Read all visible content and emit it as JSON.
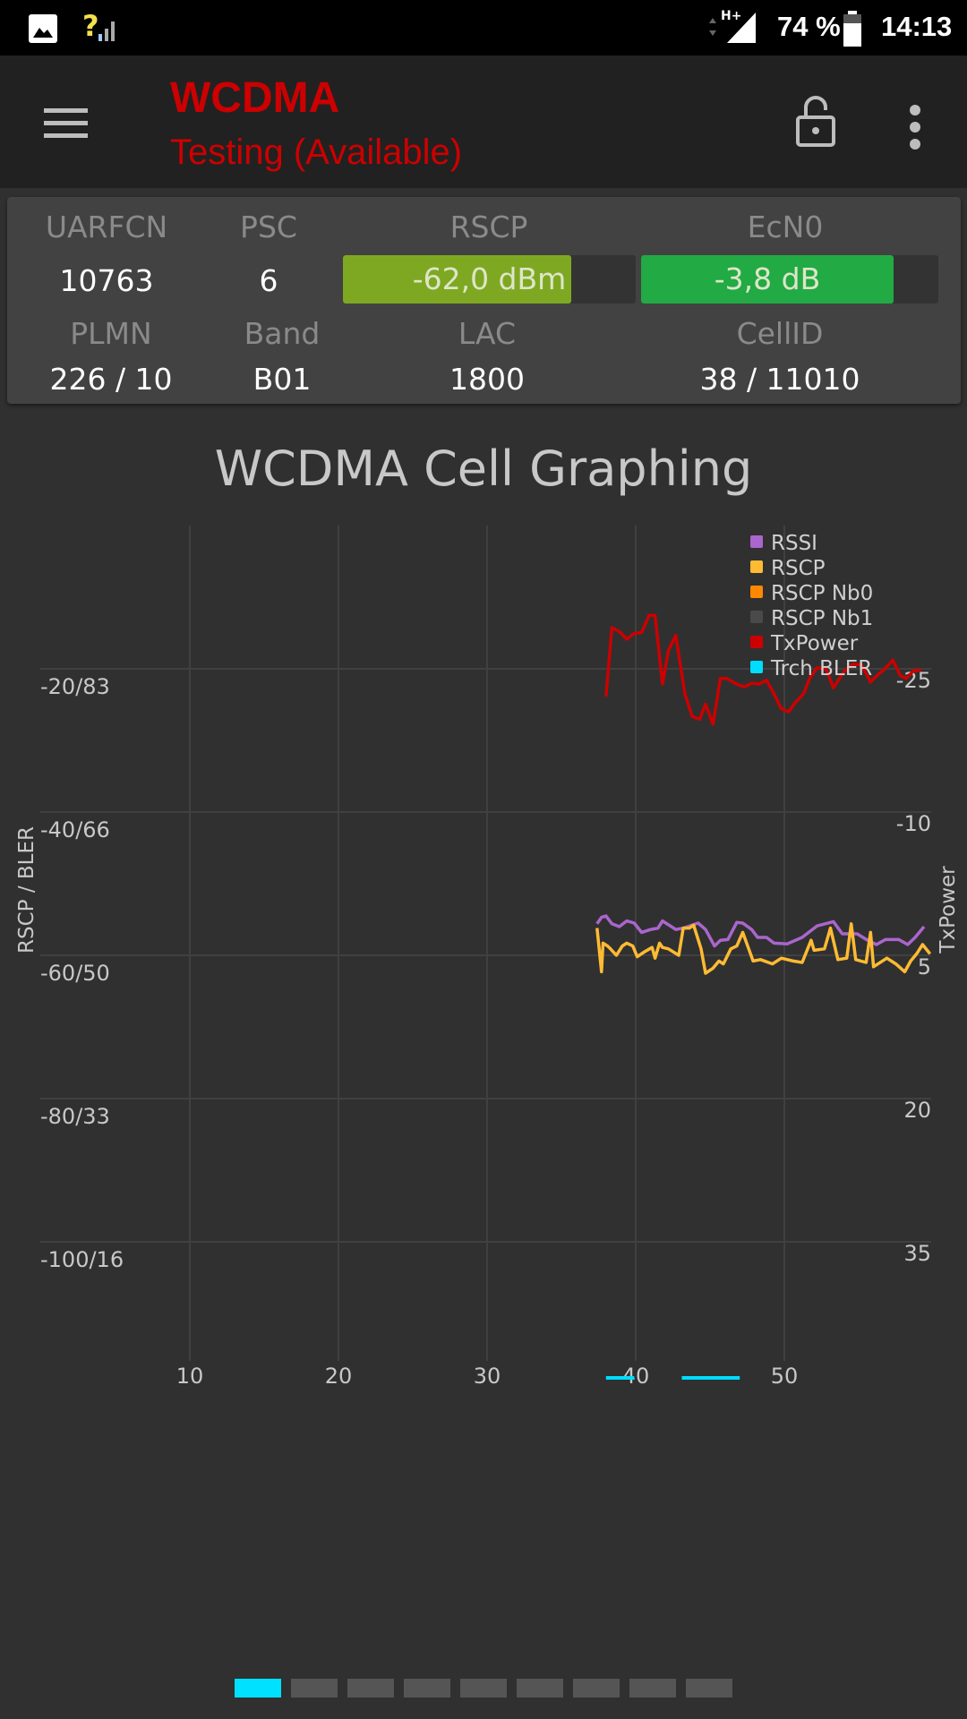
{
  "status_bar": {
    "network_type": "H+",
    "battery": "74 %",
    "time": "14:13",
    "signal_label": "?"
  },
  "app_bar": {
    "title": "WCDMA",
    "subtitle": "Testing (Available)",
    "title_color": "#cc0000"
  },
  "cell_info": {
    "uarfcn": {
      "label": "UARFCN",
      "value": "10763"
    },
    "psc": {
      "label": "PSC",
      "value": "6"
    },
    "rscp": {
      "label": "RSCP",
      "value": "-62,0 dBm",
      "fill": 0.78,
      "color": "#7fa822"
    },
    "ecn0": {
      "label": "EcN0",
      "value": "-3,8 dB",
      "fill": 0.85,
      "color": "#22aa44"
    },
    "plmn": {
      "label": "PLMN",
      "value": "226 / 10"
    },
    "band": {
      "label": "Band",
      "value": "B01"
    },
    "lac": {
      "label": "LAC",
      "value": "1800"
    },
    "cellid": {
      "label": "CellID",
      "value": "38 / 11010"
    }
  },
  "chart_data": {
    "type": "line",
    "title": "WCDMA Cell Graphing",
    "ylabel": "RSCP / BLER",
    "y2label": "TxPower",
    "grid": true,
    "legend_position": "top-right",
    "xlim": [
      0,
      60
    ],
    "x_ticks": [
      "10",
      "20",
      "30",
      "40",
      "50"
    ],
    "x_tick_values": [
      10,
      20,
      30,
      40,
      50
    ],
    "y_ticks": [
      "-20/83",
      "-40/66",
      "-60/50",
      "-80/33",
      "-100/16"
    ],
    "y_tick_values": [
      -20,
      -40,
      -60,
      -80,
      -100
    ],
    "y2_ticks": [
      "-25",
      "-10",
      "5",
      "20",
      "35"
    ],
    "y2_tick_values": [
      -25,
      -10,
      5,
      20,
      35
    ],
    "series": [
      {
        "name": "RSSI",
        "color": "#aa66cc",
        "axis": "left",
        "x": [
          37.4,
          37.7,
          38.0,
          38.4,
          38.9,
          39.4,
          39.9,
          40.4,
          41.0,
          41.5,
          41.8,
          42.7,
          43.2,
          44.2,
          44.7,
          45.3,
          45.7,
          46.2,
          46.8,
          47.2,
          47.8,
          48.2,
          48.8,
          49.3,
          50.2,
          51.2,
          52.2,
          53.3,
          53.9,
          54.9,
          55.6,
          56.2,
          56.8,
          57.7,
          58.3,
          58.8,
          59.4
        ],
        "y": [
          -55.6,
          -54.7,
          -54.5,
          -55.6,
          -56.0,
          -55.2,
          -55.5,
          -56.8,
          -56.4,
          -56.2,
          -55.2,
          -56.4,
          -56.2,
          -55.5,
          -56.4,
          -58.7,
          -57.9,
          -57.8,
          -55.4,
          -55.5,
          -56.4,
          -57.5,
          -57.5,
          -58.3,
          -58.4,
          -57.5,
          -55.9,
          -55.3,
          -57.0,
          -57.0,
          -57.9,
          -58.5,
          -57.8,
          -57.8,
          -58.5,
          -57.5,
          -56.0
        ]
      },
      {
        "name": "RSCP",
        "color": "#ffbb33",
        "axis": "left",
        "x": [
          37.4,
          37.7,
          37.8,
          38.1,
          38.3,
          38.7,
          39.1,
          39.4,
          39.8,
          40.1,
          40.6,
          41.1,
          41.3,
          41.6,
          41.8,
          42.2,
          42.9,
          43.2,
          43.6,
          43.9,
          44.4,
          44.7,
          45.2,
          45.6,
          45.9,
          46.4,
          46.8,
          47.2,
          47.6,
          47.9,
          48.4,
          49.2,
          49.8,
          50.6,
          51.2,
          51.8,
          52.0,
          52.7,
          53.1,
          53.6,
          54.2,
          54.5,
          54.8,
          55.5,
          55.8,
          56.0,
          56.9,
          57.5,
          58.1,
          58.5,
          58.9,
          59.3,
          59.8
        ],
        "y": [
          -56.2,
          -62.3,
          -58.3,
          -58.7,
          -59.1,
          -60.0,
          -58.7,
          -58.3,
          -58.7,
          -60.2,
          -59.5,
          -58.9,
          -60.4,
          -58.3,
          -58.9,
          -59.1,
          -60.0,
          -56.2,
          -56.2,
          -55.8,
          -59.1,
          -62.5,
          -61.8,
          -60.8,
          -61.2,
          -59.1,
          -58.7,
          -56.8,
          -59.1,
          -60.8,
          -60.6,
          -61.2,
          -60.4,
          -60.8,
          -61.0,
          -57.9,
          -59.3,
          -59.1,
          -56.2,
          -60.6,
          -60.4,
          -55.6,
          -60.6,
          -61.0,
          -56.8,
          -61.6,
          -60.4,
          -61.2,
          -62.3,
          -60.8,
          -59.8,
          -58.5,
          -59.8
        ]
      },
      {
        "name": "RSCP Nb0",
        "color": "#ff8800",
        "axis": "left",
        "x": [],
        "y": []
      },
      {
        "name": "RSCP Nb1",
        "color": "#4a4a4a",
        "axis": "left",
        "x": [],
        "y": []
      },
      {
        "name": "TxPower",
        "color": "#cc0000",
        "axis": "right",
        "x": [
          38.0,
          38.4,
          38.9,
          39.4,
          39.9,
          40.4,
          40.9,
          41.3,
          41.8,
          42.2,
          42.7,
          43.3,
          43.8,
          44.3,
          44.7,
          45.2,
          45.7,
          46.1,
          46.8,
          47.3,
          47.8,
          48.3,
          48.8,
          49.3,
          49.8,
          50.3,
          50.7,
          51.3,
          51.7,
          52.2,
          52.8,
          53.3,
          54.0,
          54.6,
          55.2,
          55.8,
          56.3,
          56.7,
          57.3,
          57.8,
          58.2,
          58.7,
          59.2
        ],
        "y": [
          -22.1,
          -29.3,
          -28.9,
          -28.1,
          -28.7,
          -28.8,
          -30.6,
          -30.6,
          -23.4,
          -26.9,
          -28.5,
          -22.4,
          -20.0,
          -19.7,
          -21.3,
          -19.2,
          -24.0,
          -24.0,
          -23.4,
          -23.1,
          -23.5,
          -23.4,
          -23.8,
          -22.4,
          -20.8,
          -20.5,
          -21.4,
          -22.4,
          -24.0,
          -25.1,
          -25.0,
          -23.0,
          -24.7,
          -25.5,
          -25.4,
          -23.6,
          -24.4,
          -24.9,
          -25.9,
          -24.3,
          -24.0,
          -24.8,
          -24.9
        ]
      },
      {
        "name": "Trch BLER",
        "color": "#00ddff",
        "axis": "bler",
        "segments": [
          [
            [
              38.0,
              0
            ],
            [
              39.9,
              0
            ]
          ],
          [
            [
              43.1,
              0
            ],
            [
              47.0,
              0
            ]
          ]
        ]
      }
    ]
  },
  "pager": {
    "pages": 9,
    "active": 0,
    "active_color": "#00e0ff"
  }
}
